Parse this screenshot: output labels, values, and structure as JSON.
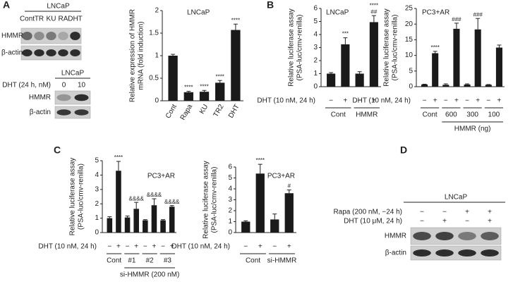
{
  "panel_labels": [
    "A",
    "B",
    "C",
    "D"
  ],
  "blots": [
    {
      "title": "LNCaP",
      "lanes": [
        "Cont",
        "TR",
        "KU",
        "RA",
        "DHT"
      ],
      "rows": [
        "HMMR",
        "β-actin"
      ]
    },
    {
      "title": "LNCaP",
      "condition": "DHT (24 h, nM)",
      "lanes": [
        "0",
        "10"
      ],
      "rows": [
        "HMMR",
        "β-actin"
      ]
    },
    {
      "title": "LNCaP",
      "conditions": [
        {
          "label": "Rapa (200 nM, −24 h)",
          "signs": [
            "−",
            "−",
            "+",
            "+"
          ]
        },
        {
          "label": "DHT (10 μM, 24 h)",
          "signs": [
            "−",
            "+",
            "−",
            "+"
          ]
        }
      ],
      "rows": [
        "HMMR",
        "β-actin"
      ]
    }
  ],
  "chart_data": [
    {
      "type": "bar",
      "title": "LNCaP",
      "ylabel": [
        "Relative expression of HMMR",
        "mRNA (fold induction)"
      ],
      "categories": [
        "Cont",
        "Rapa",
        "KU",
        "TR2",
        "DHT"
      ],
      "values": [
        1.0,
        0.19,
        0.2,
        0.4,
        1.57
      ],
      "errors": [
        0.03,
        0.02,
        0.03,
        0.05,
        0.13
      ],
      "sig": [
        null,
        "****",
        "****",
        "****",
        "****"
      ],
      "ylim": [
        0,
        2
      ],
      "yticks": [
        0,
        0.5,
        1,
        1.5,
        2
      ],
      "color": "#1a1a1a"
    },
    {
      "type": "bar",
      "title": "LNCaP",
      "ylabel": [
        "Relative luciferase assay",
        "(PSA-luc/cmv-renilla)"
      ],
      "treatment": "DHT (10 nM, 24 h)",
      "categories": [
        "−",
        "+",
        "−",
        "+"
      ],
      "groups": [
        "Cont",
        "HMMR"
      ],
      "values": [
        1.0,
        3.25,
        1.0,
        4.95
      ],
      "errors": [
        0.08,
        0.5,
        0.15,
        0.5
      ],
      "sig": [
        null,
        "***",
        null,
        "****"
      ],
      "sig2": [
        null,
        null,
        null,
        "##"
      ],
      "ylim": [
        0,
        6
      ],
      "yticks": [
        0,
        1,
        2,
        3,
        4,
        5,
        6
      ],
      "color": "#1a1a1a"
    },
    {
      "type": "bar",
      "title": "PC3+AR",
      "ylabel": [
        "Relative luciferase assay",
        "(PSA-luc/cmv-renilla)"
      ],
      "treatment": "DHT (10 nM, 24 h)",
      "categories": [
        "−",
        "+",
        "−",
        "+",
        "−",
        "+",
        "−",
        "+"
      ],
      "groups": [
        "Cont",
        "600",
        "300",
        "100"
      ],
      "group_title": "HMMR (ng)",
      "values": [
        0.7,
        10.7,
        0.6,
        18.5,
        0.7,
        18.3,
        0.6,
        12.5
      ],
      "errors": [
        0.1,
        0.6,
        0.3,
        1.8,
        0.2,
        3.5,
        0.1,
        0.8
      ],
      "sig": [
        null,
        "****",
        null,
        "###",
        null,
        "###",
        null,
        null
      ],
      "ylim": [
        0,
        25
      ],
      "yticks": [
        0,
        5,
        10,
        15,
        20,
        25
      ],
      "color": "#1a1a1a"
    },
    {
      "type": "bar",
      "title": "PC3+AR",
      "ylabel": [
        "Relative luciferase assay",
        "(PSA-luc/cmv-renilla)"
      ],
      "treatment": "DHT (10 nM, 24 h)",
      "categories": [
        "−",
        "+",
        "−",
        "+",
        "−",
        "+",
        "−",
        "+"
      ],
      "groups": [
        "Cont",
        "#1",
        "#2",
        "#3"
      ],
      "group_title": "si-HMMR (200 nM)",
      "values": [
        1.0,
        4.3,
        1.05,
        1.65,
        0.85,
        1.9,
        0.85,
        1.8
      ],
      "errors": [
        0.1,
        0.65,
        0.1,
        0.45,
        0.05,
        0.45,
        0.05,
        0.08
      ],
      "sig": [
        null,
        "****",
        null,
        "&&&&",
        null,
        "&&&&",
        null,
        "&&&&"
      ],
      "ylim": [
        0,
        5
      ],
      "yticks": [
        0,
        1,
        2,
        3,
        4,
        5
      ],
      "color": "#1a1a1a"
    },
    {
      "type": "bar",
      "title": "PC3+AR",
      "ylabel": [
        "Relative luciferase assay",
        "(PSA-luc/cmv-renilla)"
      ],
      "treatment": "DHT (10 nM, 24 h)",
      "categories": [
        "−",
        "+",
        "−",
        "+"
      ],
      "groups": [
        "Cont",
        "si-HMMR"
      ],
      "values": [
        1.0,
        5.4,
        1.2,
        3.6
      ],
      "errors": [
        0.08,
        0.85,
        0.5,
        0.3
      ],
      "sig": [
        null,
        "****",
        null,
        "#"
      ],
      "ylim": [
        0,
        6
      ],
      "yticks": [
        0,
        1,
        2,
        3,
        4,
        5,
        6
      ],
      "color": "#1a1a1a"
    }
  ]
}
